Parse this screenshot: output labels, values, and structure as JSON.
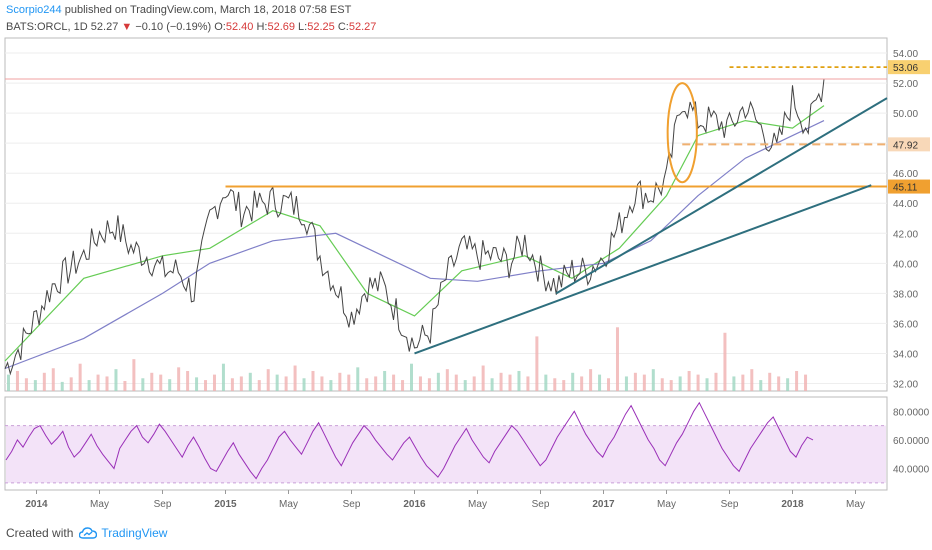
{
  "header": {
    "author": "Scorpio244",
    "published": "published on TradingView.com, March 18, 2018 07:58 EST",
    "symbol": "BATS:ORCL, 1D",
    "last": "52.27",
    "change": "−0.10 (−0.19%)",
    "o_label": "O:",
    "o_value": "52.40",
    "h_label": "H:",
    "h_value": "52.69",
    "l_label": "L:",
    "l_value": "52.25",
    "c_label": "C:",
    "c_value": "52.27"
  },
  "footer": {
    "created_with": "Created with",
    "brand": "TradingView",
    "brand_icon": "tradingview-cloud-icon"
  },
  "colors": {
    "price_line": "#444444",
    "sma_fast": "#66cc55",
    "sma_slow": "#8080c8",
    "trendline": "#2e6f7e",
    "resistance": "#f0a030",
    "support_dash": "#f0b070",
    "current_line": "#f0a0a0",
    "rsi_line": "#9a30b8",
    "rsi_band": "#f3e3f8",
    "axis_text": "#666666",
    "grid": "#eeeeee"
  },
  "chart_data": {
    "type": "line",
    "symbol": "ORCL",
    "price_axis": {
      "ylim": [
        31.5,
        55
      ],
      "ticks": [
        "54.00",
        "52.00",
        "50.00",
        "48.00",
        "46.00",
        "44.00",
        "42.00",
        "40.00",
        "38.00",
        "36.00",
        "34.00",
        "32.00"
      ]
    },
    "time_axis": {
      "range": [
        "2013-11",
        "2018-07"
      ],
      "labels": [
        "2014",
        "May",
        "Sep",
        "2015",
        "May",
        "Sep",
        "2016",
        "May",
        "Sep",
        "2017",
        "May",
        "Sep",
        "2018",
        "May"
      ]
    },
    "price_series": {
      "name": "ORCL 1D close",
      "points": [
        [
          "2013-11",
          33.0
        ],
        [
          "2013-12",
          34.5
        ],
        [
          "2014-01",
          36.5
        ],
        [
          "2014-02",
          38.5
        ],
        [
          "2014-03",
          39.5
        ],
        [
          "2014-04",
          40.5
        ],
        [
          "2014-05",
          42.0
        ],
        [
          "2014-06",
          42.5
        ],
        [
          "2014-07",
          41.0
        ],
        [
          "2014-08",
          40.5
        ],
        [
          "2014-09",
          39.5
        ],
        [
          "2014-10",
          39.5
        ],
        [
          "2014-11",
          38.0
        ],
        [
          "2014-12",
          43.0
        ],
        [
          "2015-01",
          45.0
        ],
        [
          "2015-02",
          43.5
        ],
        [
          "2015-03",
          43.8
        ],
        [
          "2015-04",
          44.2
        ],
        [
          "2015-05",
          44.0
        ],
        [
          "2015-06",
          43.5
        ],
        [
          "2015-07",
          40.5
        ],
        [
          "2015-08",
          38.5
        ],
        [
          "2015-09",
          36.5
        ],
        [
          "2015-10",
          38.5
        ],
        [
          "2015-11",
          38.5
        ],
        [
          "2015-12",
          36.5
        ],
        [
          "2016-01",
          34.5
        ],
        [
          "2016-02",
          35.5
        ],
        [
          "2016-03",
          39.0
        ],
        [
          "2016-04",
          41.0
        ],
        [
          "2016-05",
          40.5
        ],
        [
          "2016-06",
          40.5
        ],
        [
          "2016-07",
          40.0
        ],
        [
          "2016-08",
          41.5
        ],
        [
          "2016-09",
          39.5
        ],
        [
          "2016-10",
          38.5
        ],
        [
          "2016-11",
          39.5
        ],
        [
          "2016-12",
          39.5
        ],
        [
          "2017-01",
          40.5
        ],
        [
          "2017-02",
          42.5
        ],
        [
          "2017-03",
          44.8
        ],
        [
          "2017-04",
          44.5
        ],
        [
          "2017-05",
          45.5
        ],
        [
          "2017-06",
          51.0
        ],
        [
          "2017-07",
          49.5
        ],
        [
          "2017-08",
          49.5
        ],
        [
          "2017-09",
          49.0
        ],
        [
          "2017-10",
          50.5
        ],
        [
          "2017-11",
          49.0
        ],
        [
          "2017-12",
          47.5
        ],
        [
          "2018-01",
          51.0
        ],
        [
          "2018-02",
          49.0
        ],
        [
          "2018-03",
          52.27
        ]
      ]
    },
    "moving_averages": [
      {
        "name": "",
        "role": "fast",
        "points": [
          [
            "2013-11",
            33.5
          ],
          [
            "2014-04",
            39.0
          ],
          [
            "2014-09",
            40.5
          ],
          [
            "2014-12",
            41.0
          ],
          [
            "2015-04",
            43.5
          ],
          [
            "2015-07",
            42.5
          ],
          [
            "2015-10",
            38.0
          ],
          [
            "2016-01",
            36.5
          ],
          [
            "2016-04",
            39.5
          ],
          [
            "2016-08",
            40.5
          ],
          [
            "2016-11",
            39.0
          ],
          [
            "2017-02",
            41.0
          ],
          [
            "2017-05",
            44.5
          ],
          [
            "2017-07",
            48.5
          ],
          [
            "2017-10",
            49.5
          ],
          [
            "2018-01",
            49.0
          ],
          [
            "2018-03",
            50.5
          ]
        ]
      },
      {
        "name": "",
        "role": "slow",
        "points": [
          [
            "2013-11",
            33.0
          ],
          [
            "2014-04",
            35.0
          ],
          [
            "2014-09",
            38.0
          ],
          [
            "2014-12",
            40.0
          ],
          [
            "2015-04",
            41.5
          ],
          [
            "2015-08",
            42.0
          ],
          [
            "2015-11",
            40.5
          ],
          [
            "2016-02",
            39.0
          ],
          [
            "2016-05",
            38.8
          ],
          [
            "2016-09",
            39.5
          ],
          [
            "2017-01",
            40.0
          ],
          [
            "2017-04",
            41.5
          ],
          [
            "2017-07",
            44.5
          ],
          [
            "2017-10",
            47.0
          ],
          [
            "2018-01",
            48.5
          ],
          [
            "2018-03",
            49.5
          ]
        ]
      }
    ],
    "annotations": {
      "resistance_line": {
        "price": 45.11,
        "label": "45.11",
        "from": "2015-01"
      },
      "top_dashed": {
        "price": 53.06,
        "label": "53.06",
        "from": "2017-09"
      },
      "mid_dashed": {
        "price": 47.92,
        "label": "47.92",
        "from": "2017-06"
      },
      "current_price_line": {
        "price": 52.27
      },
      "trendline_lower": {
        "from": [
          "2016-01",
          34.0
        ],
        "to": [
          "2018-06",
          45.2
        ]
      },
      "trendline_upper": {
        "from": [
          "2016-10",
          38.0
        ],
        "to": [
          "2018-07",
          51.0
        ]
      },
      "ellipse": {
        "center": [
          "2017-06",
          48.7
        ],
        "rx_months": 0.8,
        "ry_price": 3.3
      }
    },
    "volume": {
      "ylim": [
        0,
        100
      ],
      "samples": [
        18,
        22,
        14,
        12,
        20,
        25,
        10,
        15,
        30,
        12,
        18,
        16,
        24,
        11,
        35,
        14,
        20,
        18,
        13,
        26,
        22,
        15,
        12,
        18,
        30,
        14,
        16,
        20,
        12,
        24,
        18,
        16,
        28,
        14,
        22,
        16,
        12,
        20,
        18,
        26,
        14,
        16,
        22,
        18,
        12,
        30,
        16,
        14,
        20,
        24,
        18,
        12,
        16,
        28,
        14,
        20,
        18,
        22,
        16,
        60,
        18,
        14,
        12,
        20,
        16,
        24,
        18,
        14,
        70,
        16,
        20,
        18,
        24,
        14,
        12,
        16,
        22,
        18,
        14,
        20,
        64,
        16,
        18,
        24,
        12,
        20,
        16,
        14,
        22,
        18
      ]
    },
    "rsi": {
      "ylim": [
        25,
        90
      ],
      "ticks": [
        "80.0000",
        "60.0000",
        "40.0000"
      ],
      "band": [
        30,
        70
      ],
      "samples": [
        46,
        52,
        60,
        55,
        62,
        68,
        70,
        63,
        57,
        61,
        66,
        55,
        48,
        52,
        58,
        64,
        56,
        50,
        45,
        40,
        54,
        60,
        66,
        70,
        62,
        58,
        64,
        71,
        66,
        60,
        54,
        48,
        56,
        62,
        55,
        47,
        40,
        38,
        45,
        52,
        58,
        50,
        44,
        38,
        33,
        40,
        46,
        54,
        62,
        66,
        60,
        55,
        50,
        58,
        66,
        72,
        64,
        56,
        48,
        42,
        50,
        58,
        64,
        70,
        66,
        60,
        55,
        50,
        46,
        52,
        58,
        62,
        55,
        48,
        42,
        38,
        34,
        40,
        48,
        56,
        62,
        68,
        60,
        54,
        48,
        44,
        52,
        58,
        64,
        70,
        66,
        60,
        54,
        48,
        42,
        46,
        54,
        62,
        68,
        74,
        80,
        72,
        64,
        58,
        52,
        48,
        56,
        62,
        70,
        78,
        84,
        76,
        68,
        60,
        54,
        46,
        42,
        50,
        58,
        64,
        72,
        80,
        86,
        78,
        70,
        62,
        54,
        48,
        42,
        38,
        46,
        54,
        60,
        66,
        72,
        76,
        68,
        60,
        52,
        48,
        56,
        62,
        60
      ]
    }
  }
}
